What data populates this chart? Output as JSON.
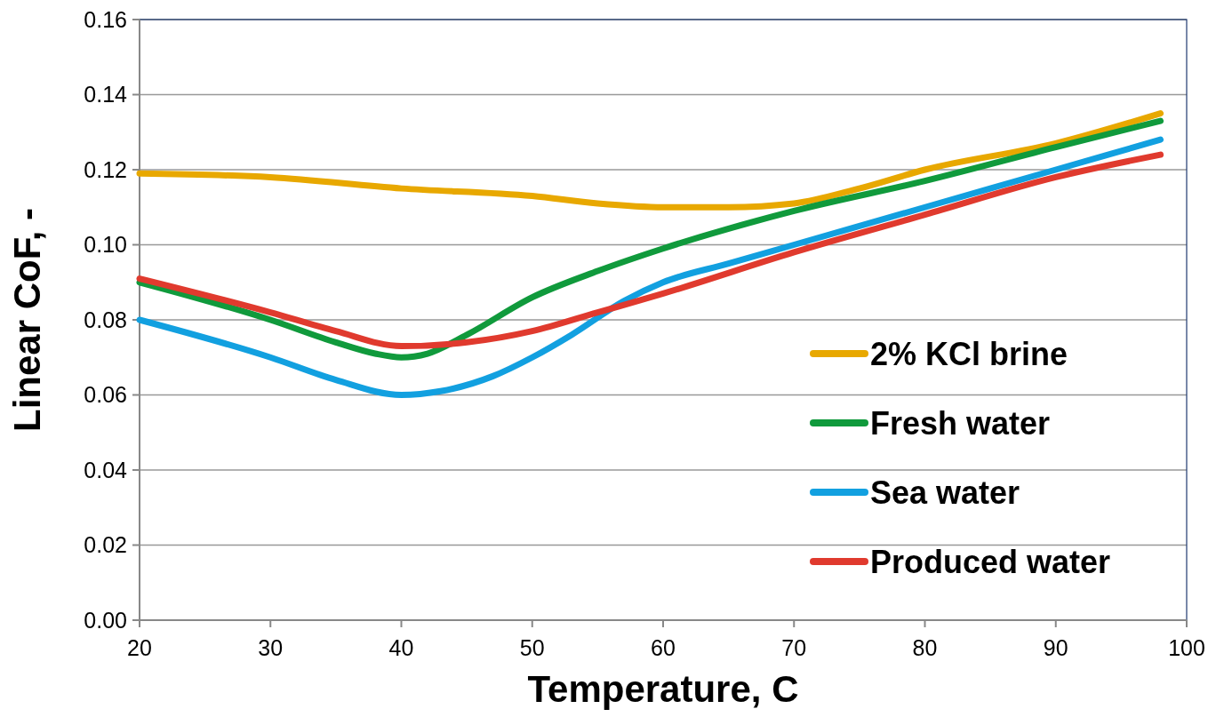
{
  "chart_data": {
    "type": "line",
    "xlabel": "Temperature, C",
    "ylabel": "Linear CoF, -",
    "xlim": [
      20,
      100
    ],
    "xticks": [
      20,
      30,
      40,
      50,
      60,
      70,
      80,
      90,
      100
    ],
    "ylim": [
      0,
      0.16
    ],
    "yticks": [
      {
        "value": 0,
        "label": "0.00"
      },
      {
        "value": 0.02,
        "label": "0.02"
      },
      {
        "value": 0.04,
        "label": "0.04"
      },
      {
        "value": 0.06,
        "label": "0.06"
      },
      {
        "value": 0.08,
        "label": "0.08"
      },
      {
        "value": 0.1,
        "label": "0.10"
      },
      {
        "value": 0.12,
        "label": "0.12"
      },
      {
        "value": 0.14,
        "label": "0.14"
      },
      {
        "value": 0.16,
        "label": "0.16"
      }
    ],
    "grid": "y",
    "legend": "bottom right",
    "line_style": "solid",
    "marker": "none",
    "series": [
      {
        "name": "2% KCl brine",
        "color": "#e8a800",
        "x": [
          20,
          30,
          40,
          50,
          55,
          60,
          65,
          70,
          75,
          80,
          90,
          98
        ],
        "values": [
          0.119,
          0.118,
          0.115,
          0.113,
          0.111,
          0.11,
          0.11,
          0.111,
          0.115,
          0.12,
          0.127,
          0.135
        ]
      },
      {
        "name": "Fresh water",
        "color": "#109a3c",
        "x": [
          20,
          30,
          35,
          38,
          40,
          42,
          45,
          50,
          55,
          60,
          70,
          80,
          90,
          98
        ],
        "values": [
          0.09,
          0.08,
          0.074,
          0.071,
          0.07,
          0.071,
          0.076,
          0.086,
          0.093,
          0.099,
          0.109,
          0.117,
          0.126,
          0.133
        ]
      },
      {
        "name": "Sea water",
        "color": "#12a0e0",
        "x": [
          20,
          30,
          35,
          40,
          43,
          47,
          50,
          53,
          57,
          60,
          65,
          70,
          80,
          90,
          98
        ],
        "values": [
          0.08,
          0.07,
          0.064,
          0.06,
          0.061,
          0.065,
          0.07,
          0.076,
          0.085,
          0.09,
          0.095,
          0.1,
          0.11,
          0.12,
          0.128
        ]
      },
      {
        "name": "Produced water",
        "color": "#e03a2e",
        "x": [
          20,
          30,
          35,
          40,
          45,
          50,
          55,
          60,
          70,
          80,
          90,
          98
        ],
        "values": [
          0.091,
          0.082,
          0.077,
          0.073,
          0.074,
          0.077,
          0.082,
          0.087,
          0.098,
          0.108,
          0.118,
          0.124
        ]
      }
    ]
  }
}
